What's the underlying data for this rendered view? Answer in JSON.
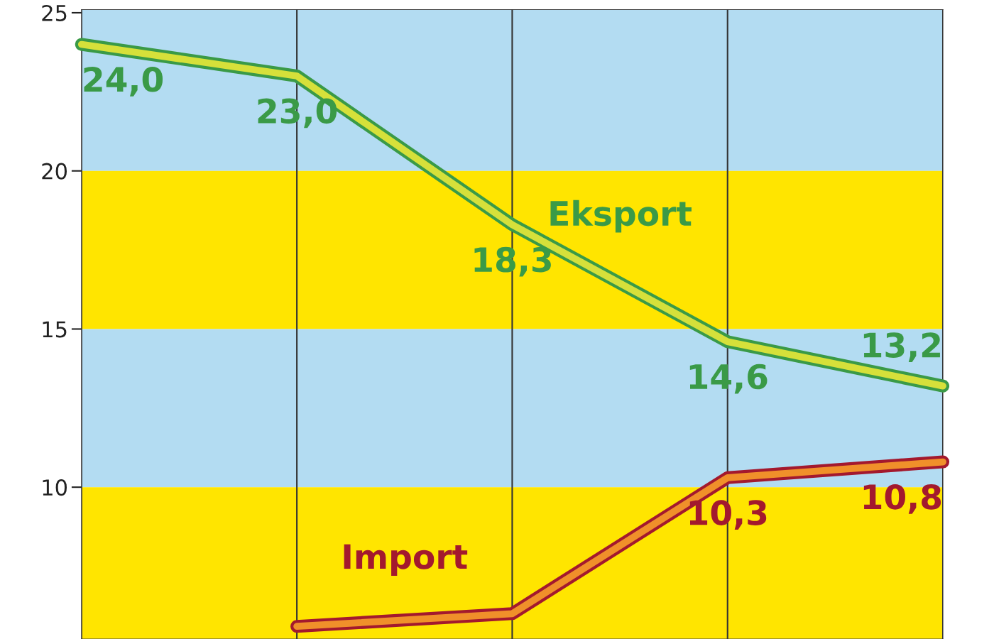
{
  "chart_data": {
    "type": "line",
    "categories": [
      null,
      null,
      null,
      null,
      null
    ],
    "series": [
      {
        "name": "Eksport",
        "color": "#3a9a47",
        "values": [
          24.0,
          23.0,
          18.3,
          14.6,
          13.2
        ],
        "value_labels": [
          "24,0",
          "23,0",
          "18,3",
          "14,6",
          "13,2"
        ]
      },
      {
        "name": "Import",
        "color": "#a3192e",
        "values": [
          null,
          5.6,
          6.0,
          10.3,
          10.8
        ],
        "value_labels": [
          null,
          null,
          null,
          "10,3",
          "10,8"
        ]
      }
    ],
    "ylim": [
      5.2,
      25.1
    ],
    "yticks": [
      10,
      15,
      20,
      25
    ],
    "bands": [
      {
        "axis": "y",
        "from": 20,
        "to": 25.1,
        "color": "#b3dcf2"
      },
      {
        "axis": "y",
        "from": 15,
        "to": 20,
        "color": "#ffe500"
      },
      {
        "axis": "y",
        "from": 10,
        "to": 15,
        "color": "#b3dcf2"
      },
      {
        "axis": "y",
        "from": 5.2,
        "to": 10,
        "color": "#ffe500"
      }
    ],
    "grid": "x",
    "legend": false,
    "marker": "none",
    "line_style": "solid"
  }
}
